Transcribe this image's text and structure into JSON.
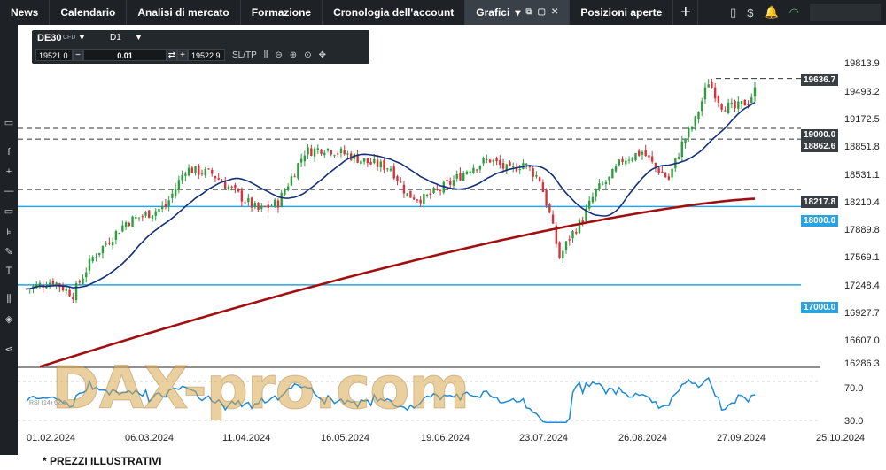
{
  "nav": {
    "tabs": [
      "News",
      "Calendario",
      "Analisi di mercato",
      "Formazione",
      "Cronologia dell'account"
    ],
    "active_tab": "Grafici",
    "active_tab_caret": "▾",
    "positions_tab": "Posizioni aperte",
    "plus": "+"
  },
  "instrument": {
    "symbol": "DE30",
    "type": "CFD",
    "timeframe": "D1",
    "sell_price": "19521.0",
    "quantity": "0.01",
    "buy_price": "19522.9",
    "sltp_label": "SL/TP"
  },
  "price_axis": [
    "19813.9",
    "19493.2",
    "19172.5",
    "18851.8",
    "18531.1",
    "18210.4",
    "17889.8",
    "17569.1",
    "17248.4",
    "16927.7",
    "16607.0",
    "16286.3"
  ],
  "rsi_axis": [
    "70.0",
    "30.0"
  ],
  "rsi_label": "RSI (14) 62.6",
  "x_axis": [
    "01.02.2024",
    "06.03.2024",
    "11.04.2024",
    "16.05.2024",
    "19.06.2024",
    "23.07.2024",
    "26.08.2024",
    "27.09.2024",
    "25.10.2024"
  ],
  "price_lines": [
    {
      "value": "19636.7",
      "style": "dark-dashed"
    },
    {
      "value": "19000.0",
      "style": "dark-dashed"
    },
    {
      "value": "18862.6",
      "style": "dark-dashed"
    },
    {
      "value": "18217.8",
      "style": "dark-dashed"
    },
    {
      "value": "18000.0",
      "style": "blue-solid"
    },
    {
      "value": "17000.0",
      "style": "blue-solid"
    }
  ],
  "watermark": "DAX-pro.com",
  "footnote": "* PREZZI ILLUSTRATIVI",
  "colors": {
    "bull": "#2f9e3f",
    "bear": "#d8323c",
    "ma_short": "#13317a",
    "ma_long": "#a01010",
    "level_blue": "#29a4e0",
    "rsi": "#1d8ad6"
  },
  "chart_data": {
    "type": "candlestick",
    "symbol": "DE30",
    "timeframe": "D1",
    "x_range": [
      "01.02.2024",
      "25.10.2024"
    ],
    "y_range": [
      16286.3,
      19813.9
    ],
    "keypoints": [
      {
        "date": "01.02.2024",
        "close": 16950
      },
      {
        "date": "06.03.2024",
        "close": 17730
      },
      {
        "date": "11.04.2024",
        "close": 18100
      },
      {
        "date": "16.05.2024",
        "close": 18740
      },
      {
        "date": "19.06.2024",
        "close": 18260
      },
      {
        "date": "23.07.2024",
        "close": 18420
      },
      {
        "date": "05.08.2024",
        "close": 17400
      },
      {
        "date": "26.08.2024",
        "close": 18650
      },
      {
        "date": "27.09.2024",
        "close": 19470
      },
      {
        "date": "01.10.2024",
        "close": 19600
      }
    ],
    "series": [
      {
        "name": "MA short",
        "color": "#13317a"
      },
      {
        "name": "MA long",
        "color": "#a01010"
      }
    ],
    "rsi": {
      "period": 14,
      "last": 62.6,
      "levels": [
        70,
        30
      ]
    }
  }
}
